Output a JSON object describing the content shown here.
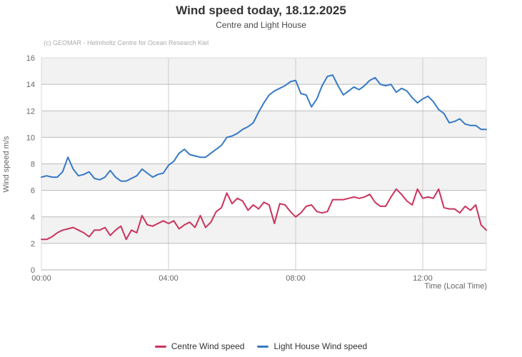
{
  "header": {
    "title": "Wind speed today, 18.12.2025",
    "subtitle": "Centre and Light House",
    "credit": "(c) GEOMAR - Helmholtz Centre for Ocean Research Kiel"
  },
  "chart_data": {
    "type": "line",
    "title": "Wind speed today, 18.12.2025",
    "subtitle": "Centre and Light House",
    "xlabel": "Time (Local Time)",
    "ylabel": "Wind speed m/s",
    "ylim": [
      0,
      16
    ],
    "ytick_step": 2,
    "x_range_minutes": [
      0,
      840
    ],
    "x_step_minutes": 10,
    "xticks": [
      {
        "minutes": 0,
        "label": "00:00"
      },
      {
        "minutes": 240,
        "label": "04:00"
      },
      {
        "minutes": 480,
        "label": "08:00"
      },
      {
        "minutes": 720,
        "label": "12:00"
      }
    ],
    "grid": true,
    "band_color": "#f2f2f2",
    "hgrid_color": "#bbbbbb",
    "vgrid_color": "#cccccc",
    "border_color": "#d9d9d9",
    "axisline_color": "#b3b3b3",
    "legend_position": "bottom-center",
    "series": [
      {
        "name": "Centre Wind speed",
        "color": "#c9345c",
        "values": [
          2.3,
          2.3,
          2.5,
          2.8,
          3.0,
          3.1,
          3.2,
          3.0,
          2.8,
          2.5,
          3.0,
          3.0,
          3.2,
          2.6,
          3.0,
          3.3,
          2.3,
          3.0,
          2.8,
          4.1,
          3.4,
          3.3,
          3.5,
          3.7,
          3.5,
          3.7,
          3.1,
          3.4,
          3.6,
          3.2,
          4.1,
          3.2,
          3.6,
          4.4,
          4.7,
          5.8,
          5.0,
          5.4,
          5.2,
          4.5,
          4.9,
          4.6,
          5.1,
          4.9,
          3.5,
          5.0,
          4.9,
          4.4,
          4.0,
          4.3,
          4.8,
          4.9,
          4.4,
          4.3,
          4.4,
          5.3,
          5.3,
          5.3,
          5.4,
          5.5,
          5.4,
          5.5,
          5.7,
          5.1,
          4.8,
          4.8,
          5.5,
          6.1,
          5.7,
          5.2,
          4.9,
          6.1,
          5.4,
          5.5,
          5.4,
          6.1,
          4.7,
          4.6,
          4.6,
          4.3,
          4.8,
          4.5,
          4.9,
          3.4,
          3.0
        ]
      },
      {
        "name": "Light House Wind speed",
        "color": "#3779c6",
        "values": [
          7.0,
          7.1,
          7.0,
          7.0,
          7.4,
          8.5,
          7.6,
          7.1,
          7.2,
          7.4,
          6.9,
          6.8,
          7.0,
          7.5,
          7.0,
          6.7,
          6.7,
          6.9,
          7.1,
          7.6,
          7.3,
          7.0,
          7.2,
          7.3,
          7.9,
          8.2,
          8.8,
          9.1,
          8.7,
          8.6,
          8.5,
          8.5,
          8.8,
          9.1,
          9.4,
          10.0,
          10.1,
          10.3,
          10.6,
          10.8,
          11.1,
          11.9,
          12.6,
          13.2,
          13.5,
          13.7,
          13.9,
          14.2,
          14.3,
          13.3,
          13.2,
          12.3,
          12.9,
          13.9,
          14.6,
          14.7,
          13.9,
          13.2,
          13.5,
          13.8,
          13.6,
          13.9,
          14.3,
          14.5,
          14.0,
          13.9,
          14.0,
          13.4,
          13.7,
          13.5,
          13.0,
          12.6,
          12.9,
          13.1,
          12.7,
          12.1,
          11.8,
          11.1,
          11.2,
          11.4,
          11.0,
          10.9,
          10.9,
          10.6,
          10.6
        ]
      }
    ]
  },
  "legend": {
    "items": [
      {
        "label": "Centre Wind speed",
        "color": "#c9345c"
      },
      {
        "label": "Light House Wind speed",
        "color": "#3779c6"
      }
    ]
  }
}
